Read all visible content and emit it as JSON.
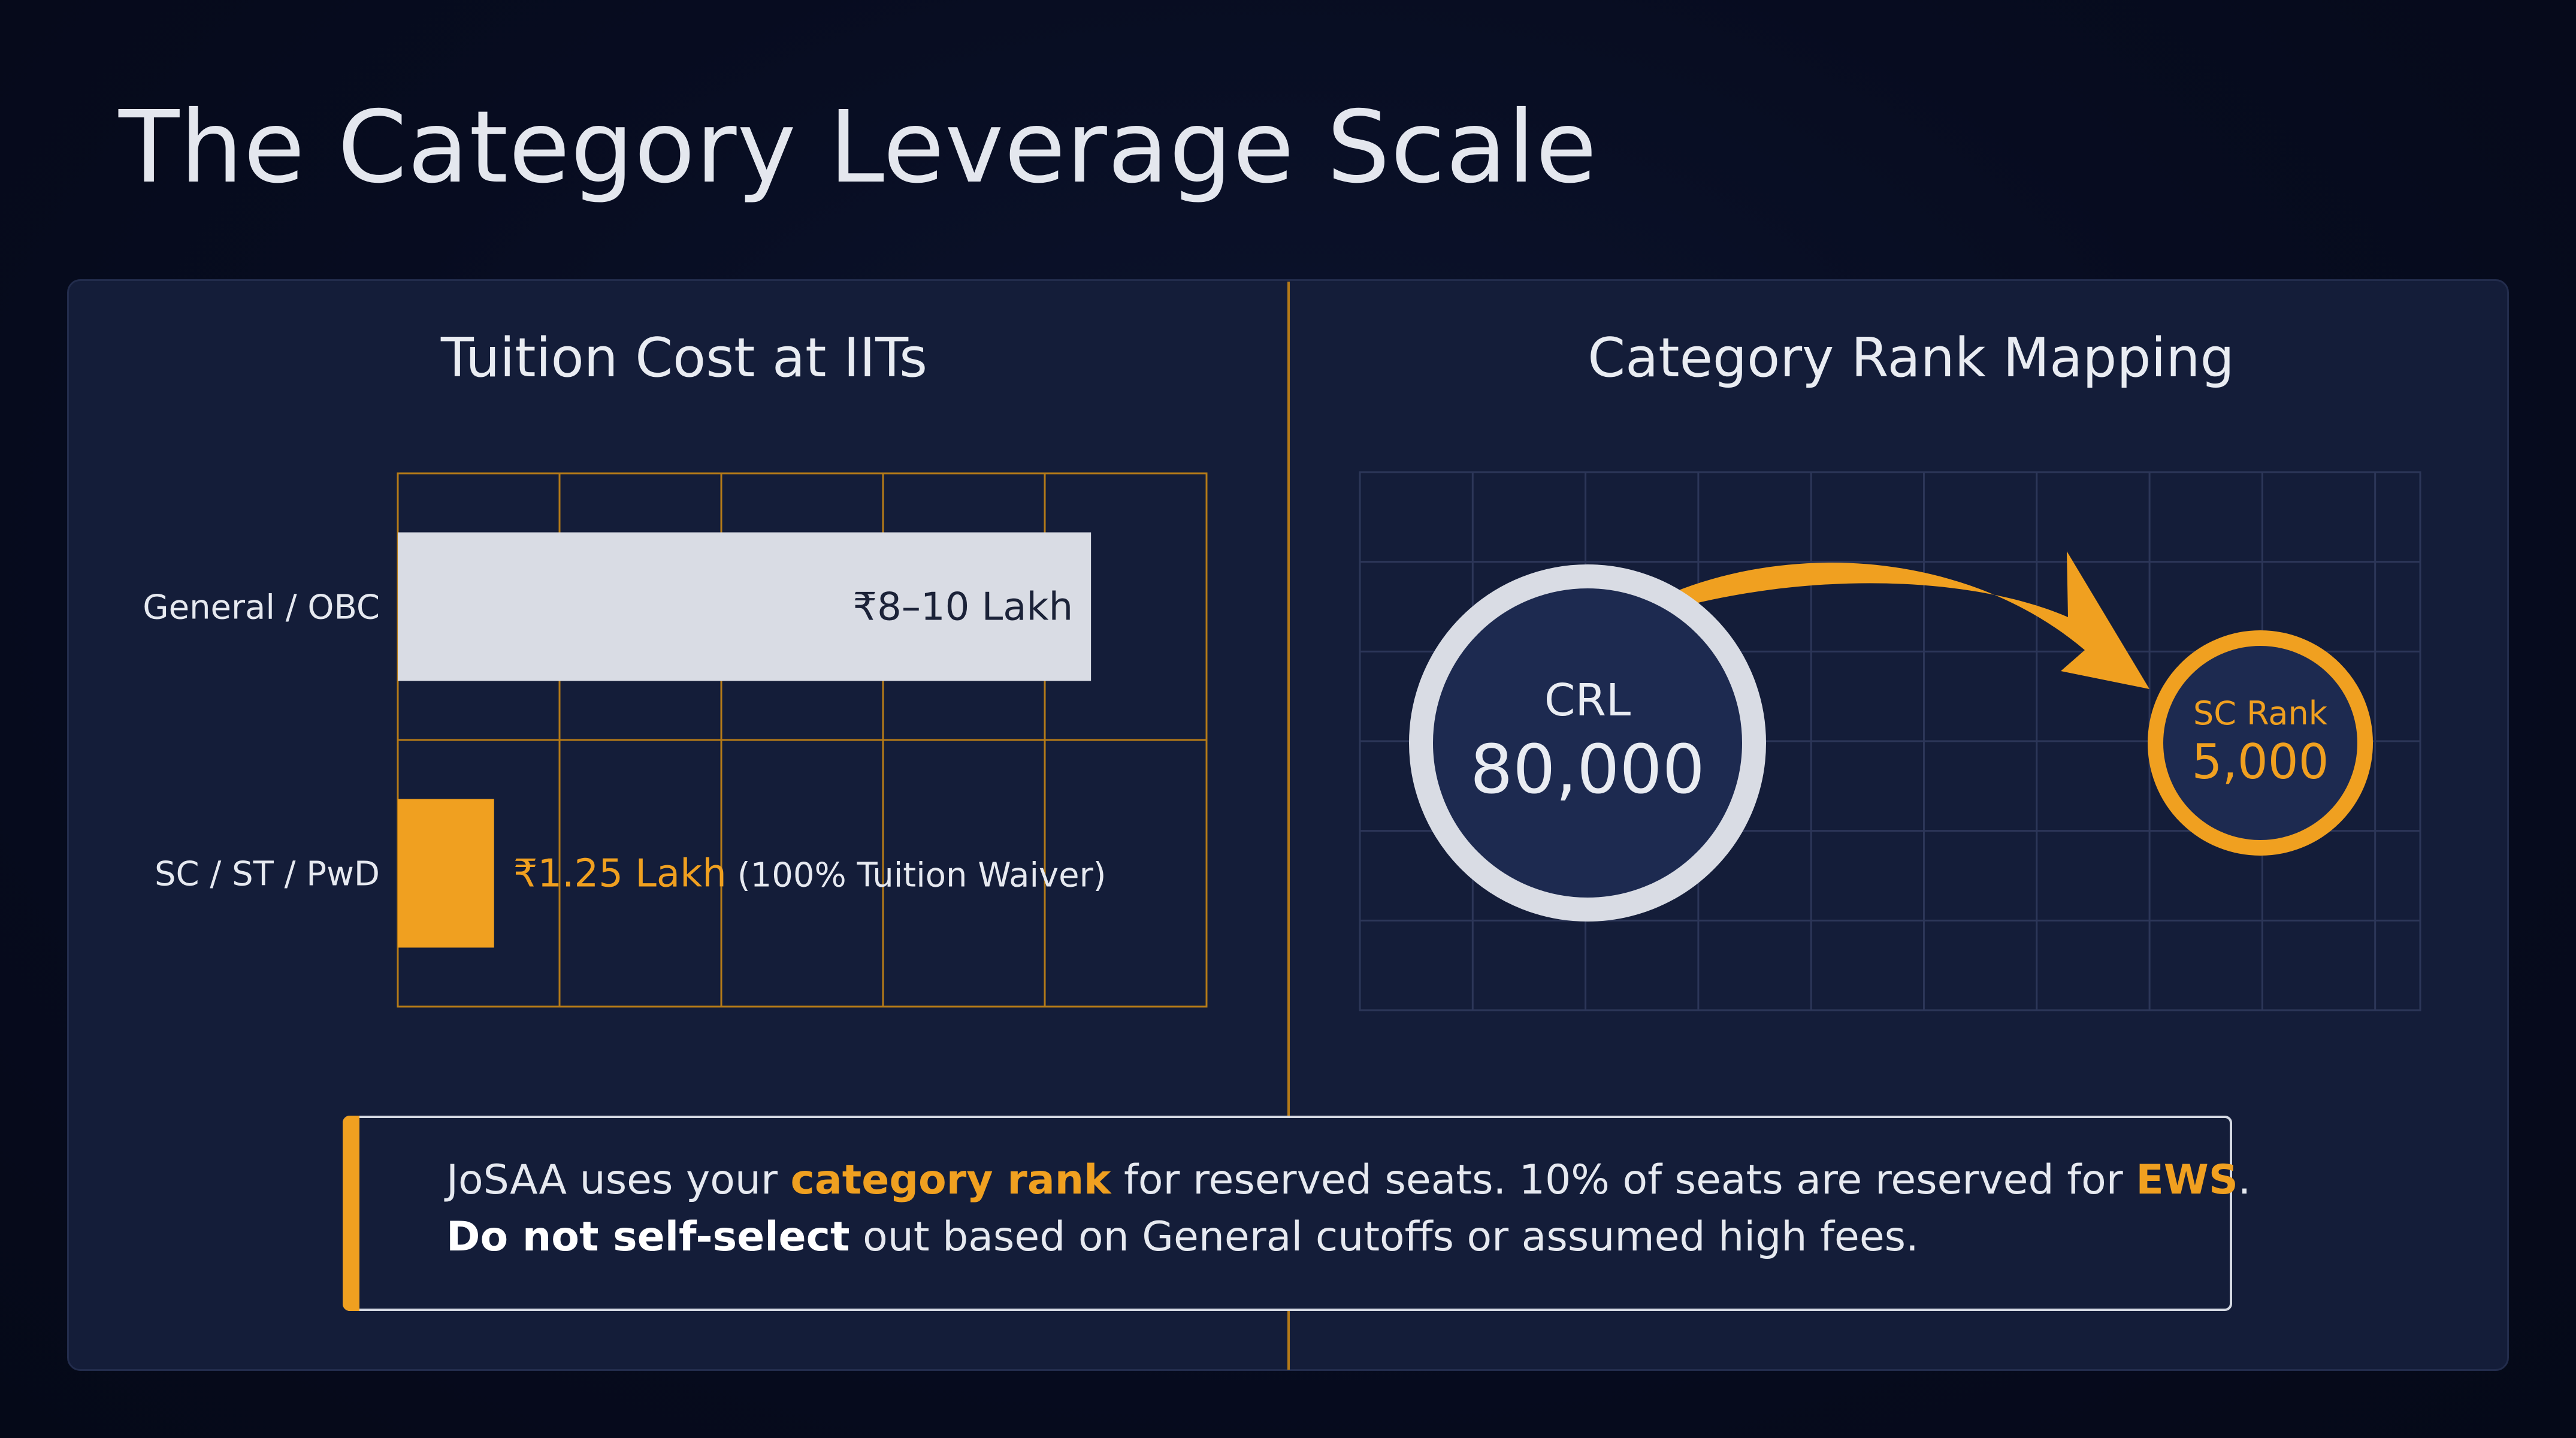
{
  "title": "The Category Leverage Scale",
  "left_panel": {
    "title": "Tuition Cost at IITs"
  },
  "right_panel": {
    "title": "Category Rank Mapping",
    "from": {
      "label": "CRL",
      "value": "80,000"
    },
    "to": {
      "label": "SC Rank",
      "value": "5,000"
    }
  },
  "chart_data": {
    "type": "bar",
    "orientation": "horizontal",
    "title": "Tuition Cost at IITs",
    "unit": "Lakh",
    "categories": [
      "General / OBC",
      "SC / ST / PwD"
    ],
    "values": [
      9,
      1.25
    ],
    "xlim": [
      0,
      10.5
    ],
    "grid": true,
    "labels": [
      {
        "value": "₹8–10 Lakh",
        "note": ""
      },
      {
        "value": "₹1.25 Lakh",
        "note": "(100% Tuition Waiver)"
      }
    ],
    "colors": [
      "#d9dce4",
      "#f0a020"
    ]
  },
  "callout": {
    "line1": [
      {
        "text": "JoSAA uses your ",
        "style": "normal"
      },
      {
        "text": "category rank",
        "style": "highlight"
      },
      {
        "text": " for reserved seats. 10% of seats are reserved for ",
        "style": "normal"
      },
      {
        "text": "EWS",
        "style": "highlight"
      },
      {
        "text": ".",
        "style": "normal"
      }
    ],
    "line2": [
      {
        "text": "Do not self-select",
        "style": "strong"
      },
      {
        "text": " out based on General cutoffs or assumed high fees.",
        "style": "normal"
      }
    ]
  },
  "colors": {
    "background": "#060b1e",
    "card": "#141d39",
    "accent": "#f0a020",
    "light": "#d9dce4",
    "grid": "#b57a18"
  }
}
